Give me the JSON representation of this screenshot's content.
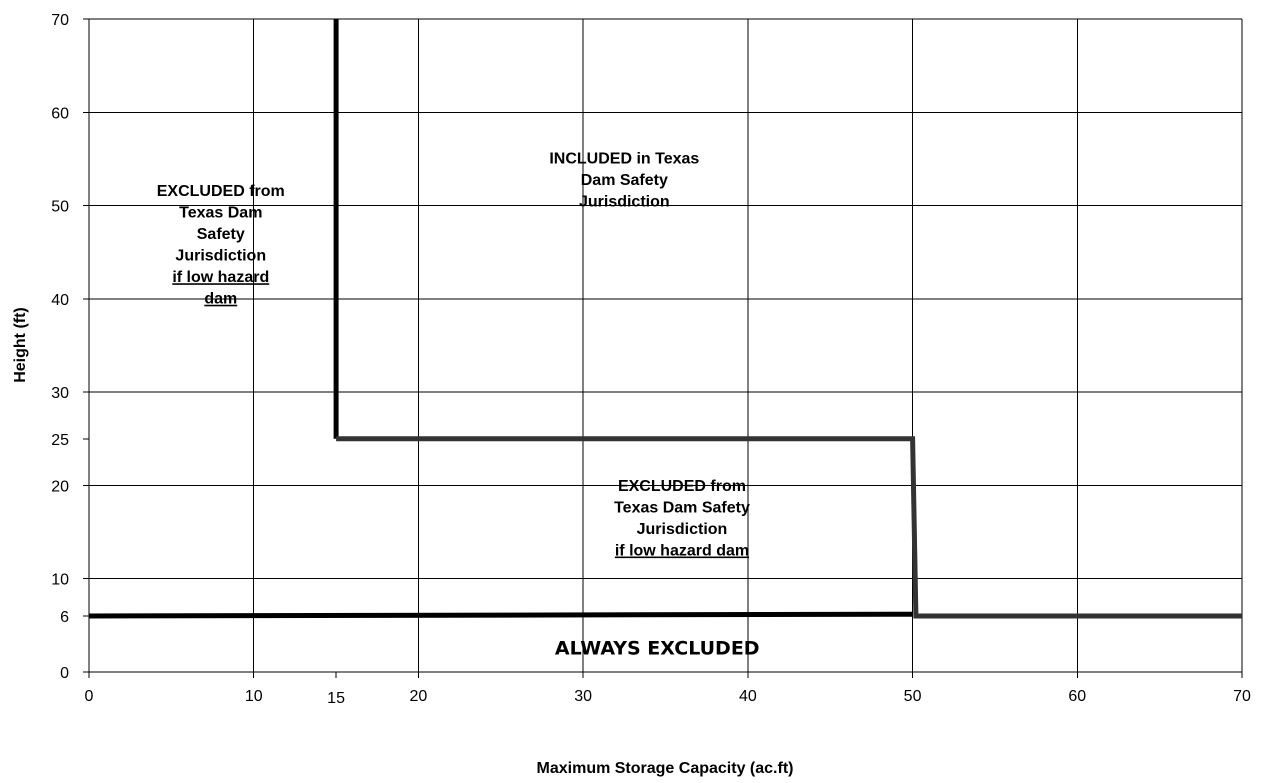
{
  "chart_data": {
    "type": "line",
    "title": "",
    "xlabel": "Maximum Storage Capacity (ac.ft)",
    "ylabel": "Height (ft)",
    "xlim": [
      0,
      70
    ],
    "ylim": [
      0,
      70
    ],
    "x_ticks": [
      0,
      10,
      15,
      20,
      30,
      40,
      50,
      60,
      70
    ],
    "y_ticks": [
      0,
      6,
      10,
      20,
      25,
      30,
      40,
      50,
      60,
      70
    ],
    "x_gridlines": [
      0,
      10,
      20,
      30,
      40,
      50,
      60,
      70
    ],
    "y_gridlines": [
      10,
      20,
      30,
      40,
      50,
      60,
      70
    ],
    "grid": true,
    "legend": "none",
    "series": [
      {
        "id": "boundary-low-height",
        "color": "#000000",
        "points": [
          [
            0,
            6
          ],
          [
            50,
            6.2
          ]
        ]
      },
      {
        "id": "boundary-vertical-15",
        "color": "#000000",
        "points": [
          [
            15,
            70
          ],
          [
            15,
            25
          ]
        ]
      },
      {
        "id": "boundary-step",
        "color": "#333333",
        "points": [
          [
            15,
            25
          ],
          [
            50,
            25
          ],
          [
            50.2,
            6
          ],
          [
            70,
            6
          ]
        ]
      }
    ],
    "annotations": [
      {
        "id": "excluded-left",
        "x": 8,
        "y": 51,
        "size": "normal",
        "lines": [
          {
            "text": "EXCLUDED from",
            "underline": false
          },
          {
            "text": "Texas Dam",
            "underline": false
          },
          {
            "text": "Safety",
            "underline": false
          },
          {
            "text": "Jurisdiction",
            "underline": false
          },
          {
            "text": "if low hazard",
            "underline": true
          },
          {
            "text": "dam",
            "underline": true
          }
        ]
      },
      {
        "id": "included",
        "x": 32.5,
        "y": 54.5,
        "size": "normal",
        "lines": [
          {
            "text": "INCLUDED in Texas",
            "underline": false
          },
          {
            "text": "Dam Safety",
            "underline": false
          },
          {
            "text": "Jurisdiction",
            "underline": false
          }
        ]
      },
      {
        "id": "excluded-middle",
        "x": 36,
        "y": 19.4,
        "size": "normal",
        "lines": [
          {
            "text": "EXCLUDED from",
            "underline": false
          },
          {
            "text": "Texas Dam Safety",
            "underline": false
          },
          {
            "text": "Jurisdiction",
            "underline": false
          },
          {
            "text": "if low hazard dam",
            "underline": true
          }
        ]
      },
      {
        "id": "always-excluded",
        "x": 34.5,
        "y": 1.9,
        "size": "big",
        "lines": [
          {
            "text": "ALWAYS EXCLUDED",
            "underline": false
          }
        ]
      }
    ]
  }
}
